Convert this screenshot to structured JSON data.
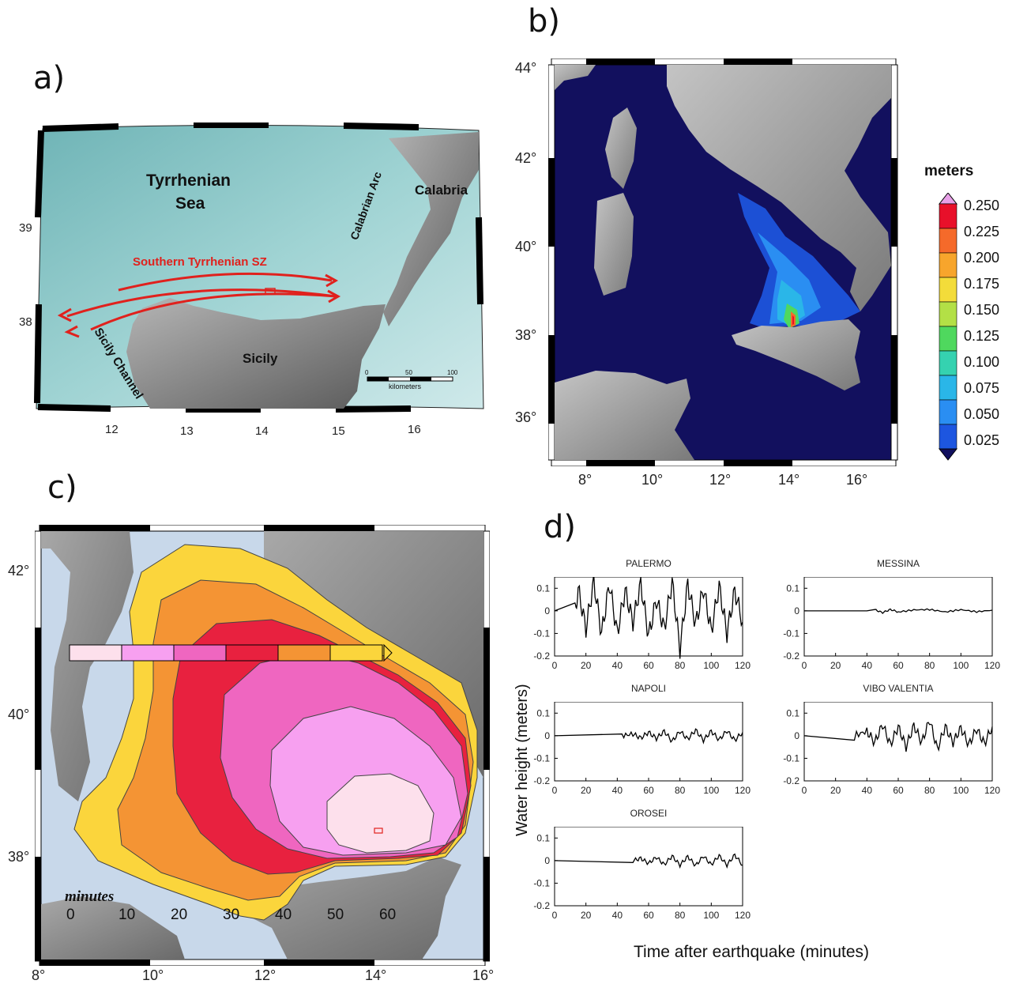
{
  "panels": {
    "a": {
      "letter": "a)",
      "labels": {
        "sea": [
          "Tyrrhenian",
          "Sea"
        ],
        "calabria": "Calabria",
        "calabrian_arc": "Calabrian Arc",
        "sz": "Southern Tyrrhenian SZ",
        "sicily": "Sicily",
        "sicily_channel": "Sicily Channel",
        "scale_ticks": [
          "0",
          "50",
          "100"
        ],
        "scale_unit": "kilometers"
      },
      "lat_ticks": [
        "39",
        "38"
      ],
      "lon_ticks": [
        "12",
        "13",
        "14",
        "15",
        "16"
      ],
      "colors": {
        "sea": "#8fc9c9",
        "land": "#8a8a8a",
        "fault": "#e0211d"
      }
    },
    "b": {
      "letter": "b)",
      "lat_ticks": [
        "44°",
        "42°",
        "40°",
        "38°",
        "36°"
      ],
      "lon_ticks": [
        "8°",
        "10°",
        "12°",
        "14°",
        "16°"
      ],
      "colorbar_title": "meters",
      "colorbar_levels": [
        "0.250",
        "0.225",
        "0.200",
        "0.175",
        "0.150",
        "0.125",
        "0.100",
        "0.075",
        "0.050",
        "0.025"
      ],
      "colorbar_colors": [
        "#e8102a",
        "#f56a2a",
        "#f7a52c",
        "#f3dc3a",
        "#b3e046",
        "#4fd85e",
        "#35d2b0",
        "#2ab6e8",
        "#2a8ef2",
        "#1d56e0"
      ],
      "colors": {
        "sea": "#12105e",
        "land": "#a8a8a8"
      }
    },
    "c": {
      "letter": "c)",
      "lat_ticks": [
        "42°",
        "40°",
        "38°"
      ],
      "lon_ticks": [
        "8°",
        "10°",
        "12°",
        "14°",
        "16°"
      ],
      "legend_title": "minutes",
      "legend_ticks": [
        "0",
        "10",
        "20",
        "30",
        "40",
        "50",
        "60"
      ],
      "legend_colors": [
        "#fde0ec",
        "#f7a0f0",
        "#ef66c0",
        "#e8213f",
        "#f49434",
        "#fbd53c"
      ],
      "colors": {
        "sea": "#c8d8ea",
        "land": "#8c8c8c"
      }
    },
    "d": {
      "letter": "d)",
      "ylabel": "Water height (meters)",
      "xlabel": "Time after earthquake (minutes)",
      "x_ticks": [
        "0",
        "20",
        "40",
        "60",
        "80",
        "100",
        "120"
      ],
      "y_ticks": [
        "0.1",
        "0",
        "-0.1",
        "-0.2"
      ],
      "stations": [
        "PALERMO",
        "MESSINA",
        "NAPOLI",
        "VIBO VALENTIA",
        "OROSEI"
      ]
    }
  },
  "chart_data": [
    {
      "type": "line",
      "title": "PALERMO",
      "xlim": [
        0,
        120
      ],
      "ylim": [
        -0.2,
        0.15
      ],
      "arrival_min": 13,
      "amplitude_m": 0.12,
      "x": [
        0,
        13,
        15,
        20,
        25,
        30,
        35,
        40,
        45,
        50,
        55,
        60,
        65,
        70,
        75,
        80,
        85,
        90,
        95,
        100,
        105,
        110,
        115,
        120
      ],
      "y": [
        0,
        0,
        0.1,
        -0.08,
        0.13,
        -0.1,
        0.12,
        -0.1,
        0.09,
        -0.05,
        0.12,
        -0.11,
        0.05,
        -0.08,
        0.13,
        -0.17,
        0.12,
        -0.06,
        0.1,
        -0.09,
        0.11,
        -0.1,
        0.09,
        -0.05
      ]
    },
    {
      "type": "line",
      "title": "MESSINA",
      "xlim": [
        0,
        120
      ],
      "ylim": [
        -0.2,
        0.15
      ],
      "arrival_min": 42,
      "amplitude_m": 0.01,
      "x": [
        0,
        40,
        45,
        50,
        55,
        60,
        70,
        80,
        90,
        100,
        110,
        120
      ],
      "y": [
        0,
        0,
        0.005,
        -0.008,
        0.006,
        -0.005,
        0.004,
        0.006,
        -0.005,
        0.005,
        -0.004,
        0.003
      ]
    },
    {
      "type": "line",
      "title": "NAPOLI",
      "xlim": [
        0,
        120
      ],
      "ylim": [
        -0.2,
        0.15
      ],
      "arrival_min": 43,
      "amplitude_m": 0.03,
      "x": [
        0,
        43,
        50,
        55,
        60,
        65,
        70,
        75,
        80,
        85,
        90,
        95,
        100,
        105,
        110,
        115,
        120
      ],
      "y": [
        0,
        0,
        0.008,
        -0.01,
        0.015,
        -0.012,
        0.02,
        -0.025,
        0.02,
        -0.015,
        0.025,
        -0.02,
        0.02,
        -0.018,
        0.022,
        -0.02,
        0.015
      ]
    },
    {
      "type": "line",
      "title": "VIBO VALENTIA",
      "xlim": [
        0,
        120
      ],
      "ylim": [
        -0.2,
        0.15
      ],
      "arrival_min": 32,
      "amplitude_m": 0.06,
      "x": [
        0,
        32,
        40,
        45,
        50,
        55,
        60,
        65,
        70,
        75,
        80,
        85,
        90,
        95,
        100,
        105,
        110,
        115,
        120
      ],
      "y": [
        0,
        0,
        0.02,
        -0.03,
        0.05,
        -0.04,
        0.04,
        -0.05,
        0.045,
        -0.03,
        0.07,
        -0.06,
        0.04,
        -0.03,
        0.035,
        -0.04,
        0.03,
        -0.035,
        0.04
      ]
    },
    {
      "type": "line",
      "title": "OROSEI",
      "xlim": [
        0,
        120
      ],
      "ylim": [
        -0.2,
        0.15
      ],
      "arrival_min": 50,
      "amplitude_m": 0.025,
      "x": [
        0,
        50,
        55,
        60,
        65,
        70,
        75,
        80,
        85,
        90,
        95,
        100,
        105,
        110,
        115,
        120
      ],
      "y": [
        0,
        0,
        0.01,
        -0.012,
        0.015,
        -0.018,
        0.02,
        -0.02,
        0.018,
        -0.022,
        0.02,
        -0.018,
        0.022,
        -0.02,
        0.025,
        -0.02
      ]
    }
  ]
}
